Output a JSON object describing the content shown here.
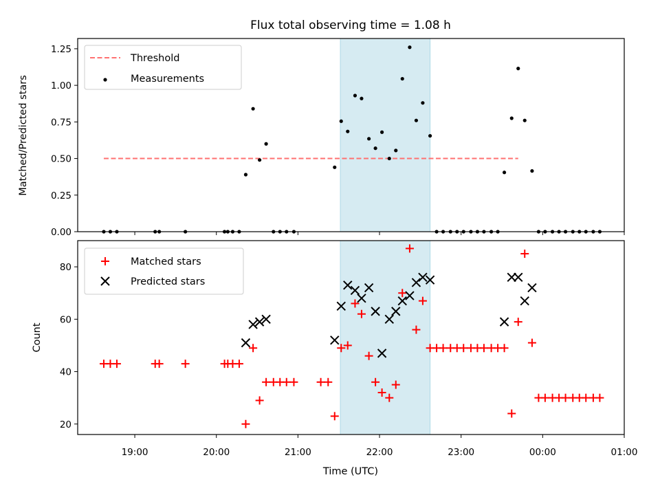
{
  "chart_data": [
    {
      "type": "scatter",
      "title": "Flux total observing time = 1.08 h",
      "ylabel": "Matched/Predicted stars",
      "xlabel": "",
      "ylim": [
        0,
        1.32
      ],
      "yticks": [
        0.0,
        0.25,
        0.5,
        0.75,
        1.0,
        1.25
      ],
      "ytick_labels": [
        "0.00",
        "0.25",
        "0.50",
        "0.75",
        "1.00",
        "1.25"
      ],
      "shaded_span": {
        "x": [
          21.52,
          22.62
        ],
        "color": "#add8e6"
      },
      "threshold": {
        "name": "Threshold",
        "y": 0.5,
        "x": [
          18.62,
          23.7
        ],
        "color": "#ff7070"
      },
      "series": [
        {
          "name": "Measurements",
          "marker": "dot",
          "color": "#000000",
          "x": [
            18.62,
            18.7,
            18.78,
            19.25,
            19.3,
            19.62,
            20.1,
            20.14,
            20.2,
            20.28,
            20.36,
            20.45,
            20.53,
            20.61,
            20.7,
            20.78,
            20.86,
            20.95,
            21.45,
            21.53,
            21.61,
            21.7,
            21.78,
            21.87,
            21.95,
            22.03,
            22.12,
            22.2,
            22.28,
            22.37,
            22.45,
            22.53,
            22.62,
            22.7,
            22.78,
            22.87,
            22.95,
            23.03,
            23.12,
            23.2,
            23.28,
            23.37,
            23.45,
            23.53,
            23.62,
            23.7,
            23.78,
            23.87,
            23.95,
            24.03,
            24.12,
            24.2,
            24.28,
            24.37,
            24.45,
            24.53,
            24.62,
            24.7
          ],
          "y": [
            0,
            0,
            0,
            0,
            0,
            0,
            0,
            0,
            0,
            0,
            0.39,
            0.84,
            0.49,
            0.6,
            0,
            0,
            0,
            0,
            0.44,
            0.755,
            0.685,
            0.93,
            0.91,
            0.635,
            0.57,
            0.68,
            0.5,
            0.555,
            1.045,
            1.26,
            0.76,
            0.88,
            0.655,
            0,
            0,
            0,
            0,
            0,
            0,
            0,
            0,
            0,
            0,
            0.405,
            0.775,
            1.115,
            0.76,
            0.415,
            0,
            0,
            0,
            0,
            0,
            0,
            0,
            0,
            0,
            0
          ]
        }
      ],
      "legend": {
        "placement": "top-left",
        "entries": [
          "Threshold",
          "Measurements"
        ]
      }
    },
    {
      "type": "scatter",
      "title": "",
      "xlabel": "Time (UTC)",
      "ylabel": "Count",
      "xlim": [
        18.3,
        25.0
      ],
      "ylim": [
        16,
        90
      ],
      "yticks": [
        20,
        40,
        60,
        80
      ],
      "ytick_labels": [
        "20",
        "40",
        "60",
        "80"
      ],
      "xticks": [
        19,
        20,
        21,
        22,
        23,
        24,
        25
      ],
      "xtick_labels": [
        "19:00",
        "20:00",
        "21:00",
        "22:00",
        "23:00",
        "00:00",
        "01:00"
      ],
      "shaded_span": {
        "x": [
          21.52,
          22.62
        ],
        "color": "#add8e6"
      },
      "series": [
        {
          "name": "Matched stars",
          "marker": "plus",
          "color": "#ff0000",
          "x": [
            18.62,
            18.7,
            18.78,
            19.25,
            19.3,
            19.62,
            20.1,
            20.14,
            20.2,
            20.28,
            20.36,
            20.45,
            20.53,
            20.61,
            20.7,
            20.78,
            20.86,
            20.95,
            21.28,
            21.37,
            21.45,
            21.53,
            21.61,
            21.7,
            21.78,
            21.87,
            21.95,
            22.03,
            22.12,
            22.2,
            22.28,
            22.37,
            22.45,
            22.53,
            22.62,
            22.7,
            22.78,
            22.87,
            22.95,
            23.03,
            23.12,
            23.2,
            23.28,
            23.37,
            23.45,
            23.53,
            23.62,
            23.7,
            23.78,
            23.87,
            23.95,
            24.03,
            24.12,
            24.2,
            24.28,
            24.37,
            24.45,
            24.53,
            24.62,
            24.7
          ],
          "y": [
            43,
            43,
            43,
            43,
            43,
            43,
            43,
            43,
            43,
            43,
            20,
            49,
            29,
            36,
            36,
            36,
            36,
            36,
            36,
            36,
            23,
            49,
            50,
            66,
            62,
            46,
            36,
            32,
            30,
            35,
            70,
            87,
            56,
            67,
            49,
            49,
            49,
            49,
            49,
            49,
            49,
            49,
            49,
            49,
            49,
            49,
            24,
            59,
            85,
            51,
            30,
            30,
            30,
            30,
            30,
            30,
            30,
            30,
            30,
            30
          ]
        },
        {
          "name": "Predicted stars",
          "marker": "x",
          "color": "#000000",
          "x": [
            20.36,
            20.45,
            20.53,
            20.61,
            21.45,
            21.53,
            21.61,
            21.7,
            21.78,
            21.87,
            21.95,
            22.03,
            22.12,
            22.2,
            22.28,
            22.37,
            22.45,
            22.53,
            22.62,
            23.53,
            23.62,
            23.7,
            23.78,
            23.87
          ],
          "y": [
            51,
            58,
            59,
            60,
            52,
            65,
            73,
            71,
            68,
            72,
            63,
            47,
            60,
            63,
            67,
            69,
            74,
            76,
            75,
            59,
            76,
            76,
            67,
            72
          ]
        }
      ],
      "legend": {
        "placement": "top-left",
        "entries": [
          "Matched stars",
          "Predicted stars"
        ]
      }
    }
  ]
}
